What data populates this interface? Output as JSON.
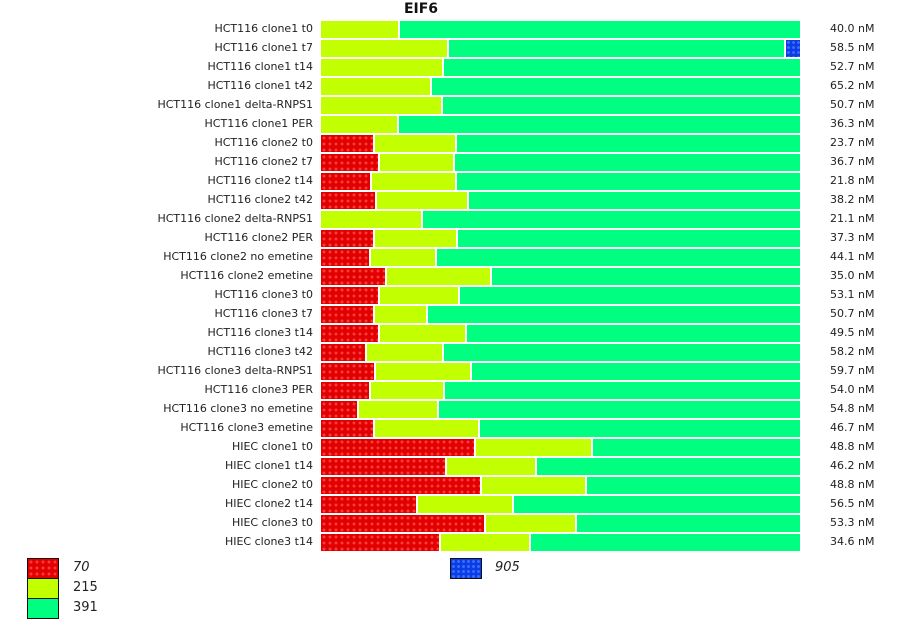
{
  "chart_data": {
    "type": "bar",
    "orientation": "horizontal",
    "stacked": true,
    "normalized": true,
    "title": "EIF6",
    "unit_note": "segment values are percent of total bar length",
    "categories": [
      "HCT116 clone1 t0",
      "HCT116 clone1 t7",
      "HCT116 clone1 t14",
      "HCT116 clone1 t42",
      "HCT116 clone1 delta-RNPS1",
      "HCT116 clone1 PER",
      "HCT116 clone2 t0",
      "HCT116 clone2 t7",
      "HCT116 clone2 t14",
      "HCT116 clone2 t42",
      "HCT116 clone2 delta-RNPS1",
      "HCT116 clone2 PER",
      "HCT116 clone2 no emetine",
      "HCT116 clone2 emetine",
      "HCT116 clone3 t0",
      "HCT116 clone3 t7",
      "HCT116 clone3 t14",
      "HCT116 clone3 t42",
      "HCT116 clone3 delta-RNPS1",
      "HCT116 clone3 PER",
      "HCT116 clone3 no emetine",
      "HCT116 clone3 emetine",
      "HIEC clone1 t0",
      "HIEC clone1 t14",
      "HIEC clone2 t0",
      "HIEC clone2 t14",
      "HIEC clone3 t0",
      "HIEC clone3 t14"
    ],
    "concentrations": [
      "40.0 nM",
      "58.5 nM",
      "52.7 nM",
      "65.2 nM",
      "50.7 nM",
      "36.3 nM",
      "23.7 nM",
      "36.7 nM",
      "21.8 nM",
      "38.2 nM",
      "21.1 nM",
      "37.3 nM",
      "44.1 nM",
      "35.0 nM",
      "53.1 nM",
      "50.7 nM",
      "49.5 nM",
      "58.2 nM",
      "59.7 nM",
      "54.0 nM",
      "54.8 nM",
      "46.7 nM",
      "48.8 nM",
      "46.2 nM",
      "48.8 nM",
      "56.5 nM",
      "53.3 nM",
      "34.6 nM"
    ],
    "series": [
      {
        "name": "70",
        "color": "#e00000",
        "pattern": "dotted",
        "values": [
          0,
          0,
          0,
          0,
          0,
          0,
          11.2,
          12.3,
          10.6,
          11.7,
          0,
          11.2,
          10.4,
          13.7,
          12.3,
          11.2,
          12.3,
          9.6,
          11.4,
          10.4,
          7.9,
          11.2,
          32.3,
          26.2,
          33.5,
          20.2,
          34.4,
          24.9
        ]
      },
      {
        "name": "215",
        "color": "#c2ff00",
        "pattern": "solid",
        "values": [
          16.5,
          26.7,
          25.6,
          23.1,
          25.4,
          16.2,
          17.1,
          15.6,
          17.7,
          19.1,
          21.2,
          17.3,
          13.8,
          21.9,
          16.5,
          11.0,
          18.1,
          16.0,
          20.0,
          15.4,
          16.7,
          21.9,
          24.2,
          18.7,
          21.9,
          20.0,
          18.9,
          18.7
        ]
      },
      {
        "name": "391",
        "color": "#00ff80",
        "pattern": "solid",
        "values": [
          83.5,
          70.0,
          74.4,
          76.9,
          74.6,
          83.8,
          71.7,
          72.1,
          71.7,
          69.2,
          78.8,
          71.5,
          75.8,
          64.4,
          71.2,
          77.8,
          69.6,
          74.4,
          68.6,
          74.2,
          75.4,
          66.9,
          43.5,
          55.1,
          44.6,
          59.8,
          46.7,
          56.4
        ]
      },
      {
        "name": "905",
        "color": "#0a3de6",
        "pattern": "dotted",
        "values": [
          0,
          3.3,
          0,
          0,
          0,
          0,
          0,
          0,
          0,
          0,
          0,
          0,
          0,
          0,
          0,
          0,
          0,
          0,
          0,
          0,
          0,
          0,
          0,
          0,
          0,
          0,
          0,
          0
        ]
      }
    ],
    "legend": [
      {
        "label": "70",
        "italic": true,
        "placement": "bottom-left"
      },
      {
        "label": "215",
        "italic": false,
        "placement": "bottom-left"
      },
      {
        "label": "391",
        "italic": false,
        "placement": "bottom-left"
      },
      {
        "label": "905",
        "italic": true,
        "placement": "bottom-center"
      }
    ],
    "xlabel": "",
    "ylabel": "",
    "grid": false
  }
}
